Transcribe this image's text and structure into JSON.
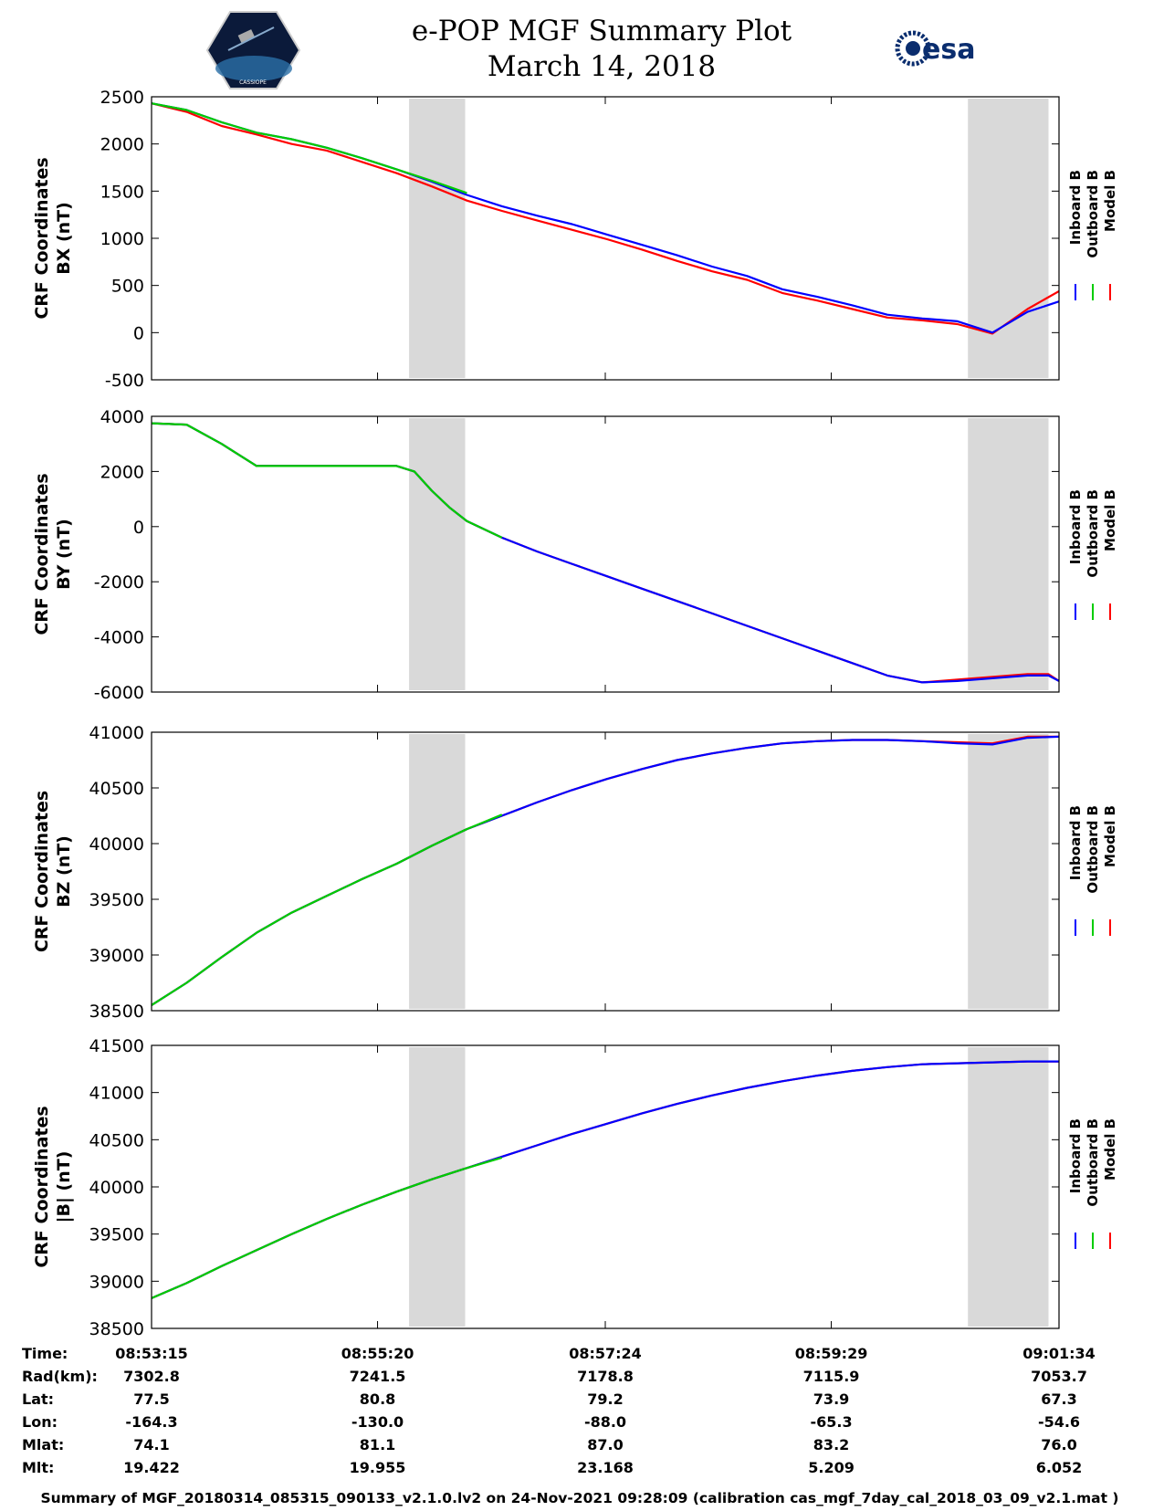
{
  "header": {
    "title": "e-POP MGF Summary Plot",
    "date": "March 14, 2018",
    "logo_left": "CASSIOPE",
    "logo_right": "esa"
  },
  "legend": {
    "items": [
      {
        "label": "Inboard B",
        "color": "#0000ff"
      },
      {
        "label": "Outboard B",
        "color": "#00cc00"
      },
      {
        "label": "Model B",
        "color": "#ff0000"
      }
    ]
  },
  "colors": {
    "inboard": "#0000ff",
    "outboard": "#00cc00",
    "model": "#ff0000",
    "shade": "#d9d9d9"
  },
  "chart_data": [
    {
      "type": "line",
      "ylabel_line1": "CRF Coordinates",
      "ylabel_line2": "BX (nT)",
      "ylim": [
        -500,
        2500
      ],
      "yticks": [
        2500,
        2000,
        1500,
        1000,
        500,
        0,
        -500
      ],
      "x": [
        0,
        20,
        40,
        60,
        80,
        100,
        120,
        140,
        160,
        180,
        200,
        220,
        240,
        260,
        280,
        300,
        320,
        340,
        360,
        380,
        400,
        420,
        440,
        460,
        480,
        500,
        518
      ],
      "series": [
        {
          "name": "Inboard B",
          "values": [
            2430,
            2360,
            2230,
            2120,
            2050,
            1960,
            1850,
            1730,
            1600,
            1460,
            1340,
            1240,
            1150,
            1040,
            930,
            820,
            700,
            600,
            460,
            380,
            290,
            190,
            150,
            120,
            0,
            220,
            330
          ]
        },
        {
          "name": "Outboard B",
          "values": [
            2430,
            2360,
            2230,
            2120,
            2050,
            1960,
            1850,
            1730,
            1610,
            1480,
            null,
            null,
            null,
            null,
            null,
            null,
            null,
            null,
            null,
            null,
            null,
            null,
            null,
            null,
            null,
            null,
            null
          ]
        },
        {
          "name": "Model B",
          "values": [
            2430,
            2340,
            2190,
            2100,
            2000,
            1930,
            1810,
            1690,
            1550,
            1400,
            1290,
            1190,
            1090,
            990,
            880,
            760,
            650,
            560,
            420,
            340,
            250,
            160,
            130,
            90,
            -10,
            250,
            440
          ]
        }
      ],
      "shaded_x": [
        [
          147,
          179
        ],
        [
          466,
          512
        ]
      ]
    },
    {
      "type": "line",
      "ylabel_line1": "CRF Coordinates",
      "ylabel_line2": "BY (nT)",
      "ylim": [
        -6000,
        4000
      ],
      "yticks": [
        4000,
        2000,
        0,
        -2000,
        -4000,
        -6000
      ],
      "x": [
        0,
        20,
        40,
        60,
        80,
        100,
        120,
        140,
        150,
        160,
        170,
        180,
        200,
        220,
        240,
        260,
        280,
        300,
        320,
        340,
        360,
        380,
        400,
        420,
        440,
        460,
        480,
        500,
        512,
        518
      ],
      "series": [
        {
          "name": "Inboard B",
          "values": [
            3750,
            3700,
            3000,
            2200,
            2200,
            2200,
            2200,
            2200,
            2000,
            1300,
            700,
            200,
            -400,
            -900,
            -1350,
            -1800,
            -2250,
            -2700,
            -3150,
            -3600,
            -4050,
            -4500,
            -4950,
            -5400,
            -5650,
            -5600,
            -5500,
            -5400,
            -5400,
            -5600
          ]
        },
        {
          "name": "Outboard B",
          "values": [
            3750,
            3700,
            3000,
            2200,
            2200,
            2200,
            2200,
            2200,
            2000,
            1300,
            700,
            200,
            -400,
            null,
            null,
            null,
            null,
            null,
            null,
            null,
            null,
            null,
            null,
            null,
            null,
            null,
            null,
            null,
            null,
            null
          ]
        },
        {
          "name": "Model B",
          "values": [
            3750,
            3700,
            3000,
            2200,
            2200,
            2200,
            2200,
            2200,
            2000,
            1300,
            700,
            200,
            -400,
            -900,
            -1350,
            -1800,
            -2250,
            -2700,
            -3150,
            -3600,
            -4050,
            -4500,
            -4950,
            -5400,
            -5650,
            -5550,
            -5450,
            -5350,
            -5350,
            -5600
          ]
        }
      ],
      "shaded_x": [
        [
          147,
          179
        ],
        [
          466,
          512
        ]
      ]
    },
    {
      "type": "line",
      "ylabel_line1": "CRF Coordinates",
      "ylabel_line2": "BZ (nT)",
      "ylim": [
        38500,
        41000
      ],
      "yticks": [
        41000,
        40500,
        40000,
        39500,
        39000,
        38500
      ],
      "x": [
        0,
        20,
        40,
        60,
        80,
        100,
        120,
        140,
        160,
        180,
        200,
        220,
        240,
        260,
        280,
        300,
        320,
        340,
        360,
        380,
        400,
        420,
        440,
        460,
        480,
        500,
        518
      ],
      "series": [
        {
          "name": "Inboard B",
          "values": [
            38550,
            38750,
            38980,
            39200,
            39380,
            39530,
            39680,
            39820,
            39980,
            40130,
            40250,
            40370,
            40480,
            40580,
            40670,
            40750,
            40810,
            40860,
            40900,
            40920,
            40930,
            40930,
            40920,
            40900,
            40890,
            40950,
            40960
          ]
        },
        {
          "name": "Outboard B",
          "values": [
            38550,
            38750,
            38980,
            39200,
            39380,
            39530,
            39680,
            39820,
            39980,
            40130,
            40260,
            null,
            null,
            null,
            null,
            null,
            null,
            null,
            null,
            null,
            null,
            null,
            null,
            null,
            null,
            null,
            null
          ]
        },
        {
          "name": "Model B",
          "values": [
            38550,
            38750,
            38980,
            39200,
            39380,
            39530,
            39680,
            39820,
            39980,
            40130,
            40250,
            40370,
            40480,
            40580,
            40670,
            40750,
            40810,
            40860,
            40900,
            40920,
            40930,
            40930,
            40920,
            40910,
            40900,
            40960,
            40960
          ]
        }
      ],
      "shaded_x": [
        [
          147,
          179
        ],
        [
          466,
          512
        ]
      ]
    },
    {
      "type": "line",
      "ylabel_line1": "CRF Coordinates",
      "ylabel_line2": "|B| (nT)",
      "ylim": [
        38500,
        41500
      ],
      "yticks": [
        41500,
        41000,
        40500,
        40000,
        39500,
        39000,
        38500
      ],
      "x": [
        0,
        20,
        40,
        60,
        80,
        100,
        120,
        140,
        160,
        180,
        200,
        220,
        240,
        260,
        280,
        300,
        320,
        340,
        360,
        380,
        400,
        420,
        440,
        460,
        480,
        500,
        518
      ],
      "series": [
        {
          "name": "Inboard B",
          "values": [
            38820,
            38980,
            39160,
            39330,
            39500,
            39660,
            39810,
            39950,
            40080,
            40200,
            40320,
            40440,
            40560,
            40670,
            40780,
            40880,
            40970,
            41050,
            41120,
            41180,
            41230,
            41270,
            41300,
            41310,
            41320,
            41330,
            41330
          ]
        },
        {
          "name": "Outboard B",
          "values": [
            38820,
            38980,
            39160,
            39330,
            39500,
            39660,
            39810,
            39950,
            40080,
            40200,
            40310,
            null,
            null,
            null,
            null,
            null,
            null,
            null,
            null,
            null,
            null,
            null,
            null,
            null,
            null,
            null,
            null
          ]
        },
        {
          "name": "Model B",
          "values": [
            38820,
            38980,
            39160,
            39330,
            39500,
            39660,
            39810,
            39950,
            40080,
            40200,
            40320,
            40440,
            40560,
            40670,
            40780,
            40880,
            40970,
            41050,
            41120,
            41180,
            41230,
            41270,
            41300,
            41310,
            41320,
            41330,
            41330
          ]
        }
      ],
      "shaded_x": [
        [
          147,
          179
        ],
        [
          466,
          512
        ]
      ]
    }
  ],
  "xaxis": {
    "range": [
      0,
      518
    ],
    "ticks": [
      0,
      129,
      259,
      388,
      518
    ]
  },
  "ephemeris": {
    "rows": [
      {
        "label": "Time:",
        "values": [
          "08:53:15",
          "08:55:20",
          "08:57:24",
          "08:59:29",
          "09:01:34"
        ]
      },
      {
        "label": "Rad(km):",
        "values": [
          "7302.8",
          "7241.5",
          "7178.8",
          "7115.9",
          "7053.7"
        ]
      },
      {
        "label": "Lat:",
        "values": [
          "77.5",
          "80.8",
          "79.2",
          "73.9",
          "67.3"
        ]
      },
      {
        "label": "Lon:",
        "values": [
          "-164.3",
          "-130.0",
          "-88.0",
          "-65.3",
          "-54.6"
        ]
      },
      {
        "label": "Mlat:",
        "values": [
          "74.1",
          "81.1",
          "87.0",
          "83.2",
          "76.0"
        ]
      },
      {
        "label": "Mlt:",
        "values": [
          "19.422",
          "19.955",
          "23.168",
          "5.209",
          "6.052"
        ]
      }
    ]
  },
  "footer": {
    "text": "Summary of MGF_20180314_085315_090133_v2.1.0.lv2 on 24-Nov-2021 09:28:09 (calibration cas_mgf_7day_cal_2018_03_09_v2.1.mat )"
  }
}
